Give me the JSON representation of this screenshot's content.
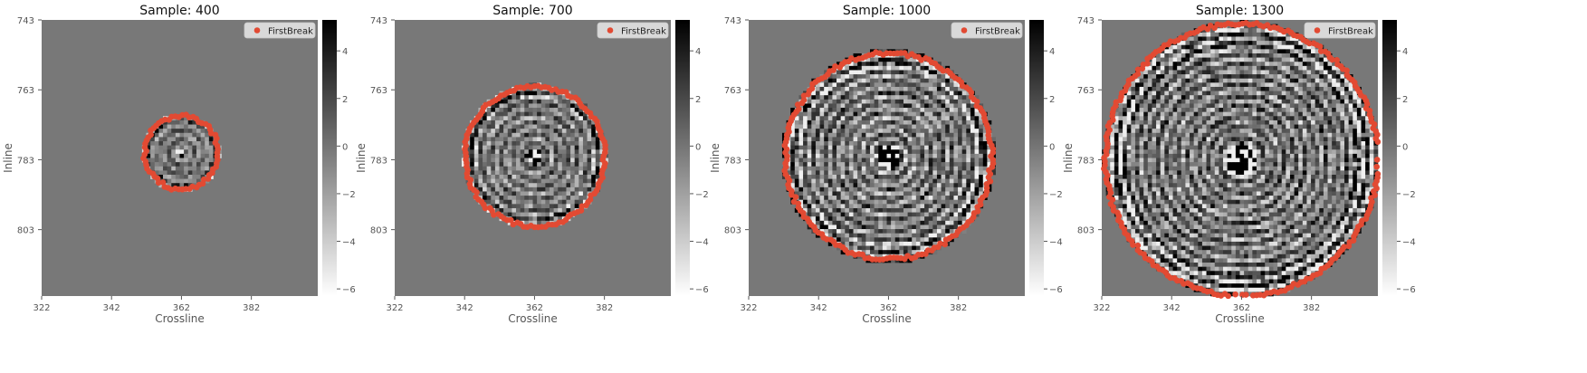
{
  "chart_data": [
    {
      "type": "heatmap",
      "title": "Sample: 400",
      "xlabel": "Crossline",
      "ylabel": "Inline",
      "xticks": [
        "322",
        "342",
        "362",
        "382"
      ],
      "yticks": [
        "743",
        "763",
        "783",
        "803"
      ],
      "xlim": [
        322,
        401
      ],
      "ylim": [
        743,
        822
      ],
      "colorbar": {
        "ticks": [
          "4",
          "2",
          "0",
          "−2",
          "−4",
          "−6"
        ],
        "min": -6.3,
        "max": 5.3,
        "cmap": "gray_r"
      },
      "legend": {
        "label": "FirstBreak",
        "placement": "top-right"
      },
      "series": [
        {
          "name": "FirstBreak",
          "marker": "circle",
          "center": [
            362,
            781
          ],
          "radius": 10.5
        }
      ],
      "image": {
        "circle_center": [
          362,
          781
        ],
        "circle_radius": 11,
        "texture": "mild"
      }
    },
    {
      "type": "heatmap",
      "title": "Sample: 700",
      "xlabel": "Crossline",
      "ylabel": "Inline",
      "xticks": [
        "322",
        "342",
        "362",
        "382"
      ],
      "yticks": [
        "743",
        "763",
        "783",
        "803"
      ],
      "xlim": [
        322,
        401
      ],
      "ylim": [
        743,
        822
      ],
      "colorbar": {
        "ticks": [
          "4",
          "2",
          "0",
          "−2",
          "−4",
          "−6"
        ],
        "min": -6.3,
        "max": 5.3,
        "cmap": "gray_r"
      },
      "legend": {
        "label": "FirstBreak",
        "placement": "top-right"
      },
      "series": [
        {
          "name": "FirstBreak",
          "marker": "circle",
          "center": [
            362,
            782
          ],
          "radius": 20
        }
      ],
      "image": {
        "circle_center": [
          362,
          782
        ],
        "circle_radius": 20.5,
        "texture": "moderate"
      }
    },
    {
      "type": "heatmap",
      "title": "Sample: 1000",
      "xlabel": "Crossline",
      "ylabel": "Inline",
      "xticks": [
        "322",
        "342",
        "362",
        "382"
      ],
      "yticks": [
        "743",
        "763",
        "783",
        "803"
      ],
      "xlim": [
        322,
        401
      ],
      "ylim": [
        743,
        822
      ],
      "colorbar": {
        "ticks": [
          "4",
          "2",
          "0",
          "−2",
          "−4",
          "−6"
        ],
        "min": -6.3,
        "max": 5.3,
        "cmap": "gray_r"
      },
      "legend": {
        "label": "FirstBreak",
        "placement": "top-right"
      },
      "series": [
        {
          "name": "FirstBreak",
          "marker": "circle",
          "center": [
            362,
            782
          ],
          "radius": 29.5
        }
      ],
      "image": {
        "circle_center": [
          362,
          782
        ],
        "circle_radius": 30.5,
        "texture": "strong"
      }
    },
    {
      "type": "heatmap",
      "title": "Sample: 1300",
      "xlabel": "Crossline",
      "ylabel": "Inline",
      "xticks": [
        "322",
        "342",
        "362",
        "382"
      ],
      "yticks": [
        "743",
        "763",
        "783",
        "803"
      ],
      "xlim": [
        322,
        401
      ],
      "ylim": [
        743,
        822
      ],
      "colorbar": {
        "ticks": [
          "4",
          "2",
          "0",
          "−2",
          "−4",
          "−6"
        ],
        "min": -6.3,
        "max": 5.3,
        "cmap": "gray_r"
      },
      "legend": {
        "label": "FirstBreak",
        "placement": "top-right"
      },
      "series": [
        {
          "name": "FirstBreak",
          "marker": "circle",
          "center": [
            362,
            783
          ],
          "radius": 39
        }
      ],
      "image": {
        "circle_center": [
          362,
          783
        ],
        "circle_radius": 39.5,
        "texture": "strong"
      }
    }
  ],
  "colors": {
    "background_gray": "#787878",
    "marker": "#e24a33",
    "text": "#555555",
    "legend_bg": "#d9d9d9"
  }
}
